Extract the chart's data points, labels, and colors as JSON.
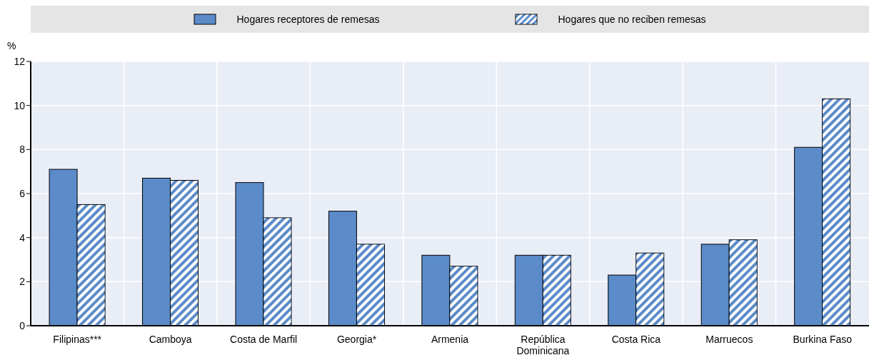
{
  "chart_data": {
    "type": "bar",
    "ylabel": "%",
    "categories": [
      "Filipinas***",
      "Camboya",
      "Costa de Marfil",
      "Georgia*",
      "Armenia",
      "República Dominicana",
      "Costa Rica",
      "Marruecos",
      "Burkina Faso"
    ],
    "series": [
      {
        "name": "Hogares receptores de remesas",
        "color": "#5b8bc9",
        "values": [
          7.1,
          6.7,
          6.5,
          5.2,
          3.2,
          3.2,
          2.3,
          3.7,
          8.1
        ]
      },
      {
        "name": "Hogares que no reciben remesas",
        "color": "#5b8bc9",
        "values": [
          5.5,
          6.6,
          4.9,
          3.7,
          2.7,
          3.2,
          3.3,
          3.9,
          10.3
        ]
      }
    ],
    "ylim": [
      0,
      12
    ],
    "yticks": [
      0,
      2,
      4,
      6,
      8,
      10,
      12
    ],
    "grid": true,
    "legend": "top"
  }
}
